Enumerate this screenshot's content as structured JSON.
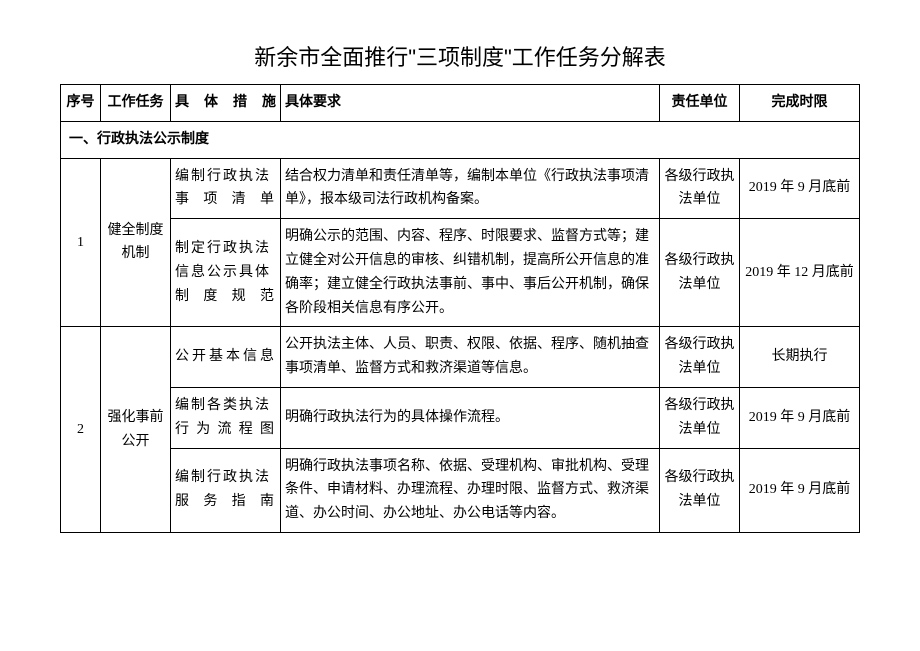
{
  "title": "新余市全面推行\"三项制度\"工作任务分解表",
  "headers": {
    "idx": "序号",
    "task": "工作任务",
    "measure": "具体措施",
    "req": "具体要求",
    "unit": "责任单位",
    "deadline": "完成时限"
  },
  "section1": {
    "label": "一、行政执法公示制度"
  },
  "rows": {
    "r1": {
      "idx": "1",
      "task": "健全制度机制",
      "m1": "编制行政执法事项清单",
      "req1": "结合权力清单和责任清单等，编制本单位《行政执法事项清单》，报本级司法行政机构备案。",
      "unit1": "各级行政执法单位",
      "dl1": "2019 年 9 月底前",
      "m2": "制定行政执法信息公示具体制度规范",
      "req2": "明确公示的范围、内容、程序、时限要求、监督方式等；建立健全对公开信息的审核、纠错机制，提高所公开信息的准确率；建立健全行政执法事前、事中、事后公开机制，确保各阶段相关信息有序公开。",
      "unit2": "各级行政执法单位",
      "dl2": "2019 年 12 月底前"
    },
    "r2": {
      "idx": "2",
      "task": "强化事前公开",
      "m1": "公开基本信息",
      "req1": "公开执法主体、人员、职责、权限、依据、程序、随机抽查事项清单、监督方式和救济渠道等信息。",
      "unit1": "各级行政执法单位",
      "dl1": "长期执行",
      "m2": "编制各类执法行为流程图",
      "req2": "明确行政执法行为的具体操作流程。",
      "unit2": "各级行政执法单位",
      "dl2": "2019 年 9 月底前",
      "m3": "编制行政执法服务指南",
      "req3": "明确行政执法事项名称、依据、受理机构、审批机构、受理条件、申请材料、办理流程、办理时限、监督方式、救济渠道、办公时间、办公地址、办公电话等内容。",
      "unit3": "各级行政执法单位",
      "dl3": "2019 年 9 月底前"
    }
  }
}
